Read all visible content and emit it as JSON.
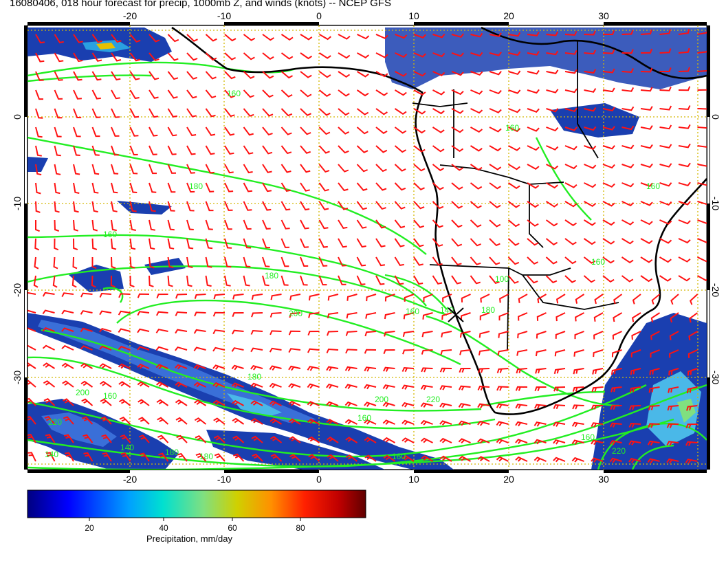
{
  "title": "16080406, 018 hour forecast for precip, 1000mb Z, and winds (knots) -- NCEP GFS",
  "map": {
    "lon_ticks": [
      "-20",
      "-10",
      "0",
      "10",
      "20",
      "30"
    ],
    "lat_ticks": [
      "0",
      "-10",
      "-20",
      "-30"
    ],
    "contour_labels": [
      "160",
      "180",
      "160",
      "180",
      "200",
      "140",
      "160",
      "180",
      "200",
      "220",
      "180",
      "160",
      "140",
      "160",
      "180",
      "200",
      "220",
      "180",
      "160",
      "140",
      "220",
      "160",
      "160",
      "160",
      "100",
      "160"
    ],
    "colors": {
      "contour": "#22ee22",
      "barb": "#ff1111",
      "coast": "#000000",
      "grid": "#d4b800"
    }
  },
  "colorbar": {
    "ticks": [
      "20",
      "40",
      "60",
      "80"
    ],
    "label": "Precipitation, mm/day",
    "colors": [
      "#000080",
      "#0000ff",
      "#00a0ff",
      "#00e0d0",
      "#80e080",
      "#d0d000",
      "#ff9000",
      "#ff2000",
      "#c00000",
      "#600000"
    ]
  }
}
